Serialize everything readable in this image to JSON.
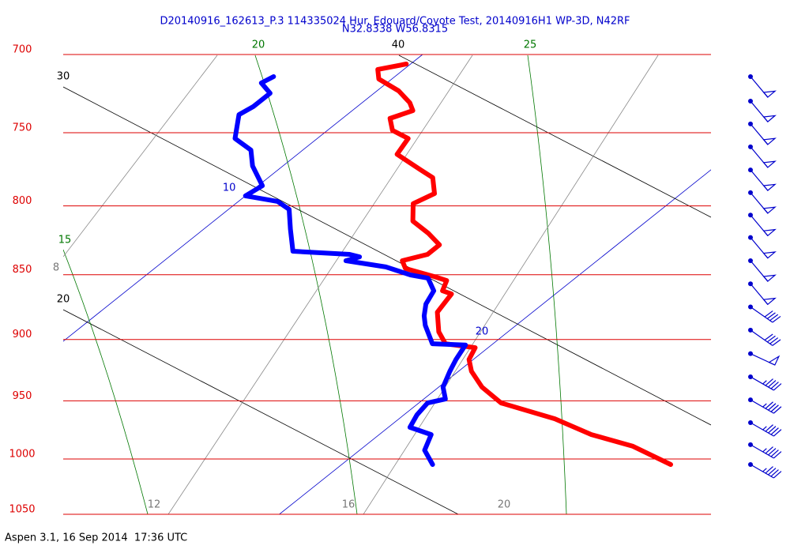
{
  "chart_data": {
    "type": "skewt",
    "title": "D20140916_162613_P.3 114335024 Hur. Edouard/Coyote Test, 20140916H1 WP-3D, N42RF",
    "subtitle": "N32.8338 W56.8315",
    "footer": "Aspen 3.1, 16 Sep 2014  17:36 UTC",
    "log_scale": true,
    "ylim": [
      1050,
      700
    ],
    "yticks": [
      700,
      750,
      800,
      850,
      900,
      950,
      1000,
      1050
    ],
    "isotherms": [
      10,
      20
    ],
    "dry_adiabats": [
      30,
      40,
      20
    ],
    "moist_adiabats": [
      15,
      20,
      25
    ],
    "mixing_ratios": [
      8,
      12,
      16,
      20
    ],
    "series": [
      {
        "color": "#ff0000",
        "pressure": [
          705.9,
          709.3,
          715.3,
          722.8,
          730.4,
          735.5,
          740.6,
          748.4,
          753.8,
          764.4,
          775.0,
          780.3,
          791.3,
          798.4,
          810.8,
          819.4,
          827.9,
          834.9,
          839.6,
          845.4,
          851.4,
          854.4,
          862.2,
          864.6,
          878.6,
          893.9,
          903.4,
          906.5,
          916.0,
          925.6,
          938.6,
          951.8,
          965.2,
          978.7,
          988.9,
          1004.9
        ],
        "values": [
          9.9,
          9.4,
          9.7,
          10.5,
          11.1,
          11.4,
          11.1,
          11.5,
          12.1,
          12.3,
          13.3,
          13.8,
          14.3,
          14.1,
          14.6,
          15.3,
          15.9,
          15.9,
          15.5,
          15.8,
          16.7,
          17.1,
          17.3,
          17.6,
          17.8,
          18.4,
          18.9,
          19.7,
          19.9,
          20.3,
          21.0,
          21.9,
          23.6,
          24.9,
          26.2,
          27.6
        ]
      },
      {
        "color": "#0000ff",
        "pressure": [
          713.8,
          717.8,
          724.3,
          732.9,
          738.1,
          753.8,
          761.5,
          772.3,
          785.9,
          792.9,
          796.8,
          802.4,
          816.5,
          832.6,
          834.9,
          836.7,
          839.6,
          844.2,
          850.2,
          852.6,
          862.2,
          872.3,
          881.4,
          888.8,
          903.4,
          904.4,
          916.0,
          925.6,
          938.6,
          948.5,
          951.8,
          961.8,
          972.5,
          978.7,
          992.3,
          1004.9
        ],
        "values": [
          7.2,
          7.1,
          7.6,
          7.6,
          7.5,
          8.1,
          8.8,
          9.3,
          10.1,
          10.0,
          10.9,
          11.4,
          12.0,
          12.7,
          14.1,
          14.4,
          14.2,
          15.3,
          16.1,
          16.6,
          17.1,
          17.3,
          17.6,
          17.9,
          18.6,
          19.4,
          19.6,
          19.8,
          20.1,
          20.5,
          20.2,
          20.3,
          20.5,
          21.2,
          21.5,
          22.1
        ]
      }
    ],
    "winds": {
      "color": "#0000cc",
      "pressure": [
        713.8,
        729.4,
        744.2,
        759.4,
        775.0,
        790.7,
        806.5,
        822.6,
        839.6,
        856.9,
        874.5,
        892.6,
        911.3,
        930.1,
        949.2,
        968.5,
        987.5,
        1004.9
      ],
      "speed": [
        50,
        50,
        50,
        50,
        50,
        50,
        50,
        50,
        50,
        50,
        40,
        40,
        50,
        45,
        45,
        45,
        45,
        45
      ],
      "direction": [
        140,
        140,
        140,
        140,
        140,
        140,
        140,
        140,
        140,
        140,
        125,
        125,
        115,
        120,
        120,
        120,
        120,
        120
      ]
    }
  }
}
